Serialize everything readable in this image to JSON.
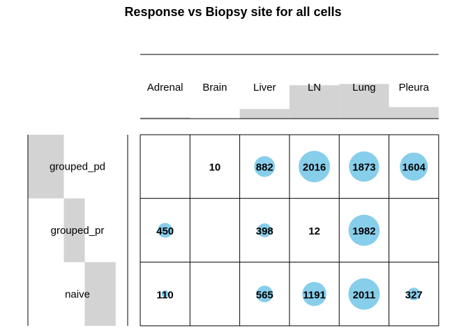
{
  "chart_data": {
    "type": "table",
    "title": "Response vs Biopsy site for all cells",
    "columns": [
      "Adrenal",
      "Brain",
      "Liver",
      "LN",
      "Lung",
      "Pleura"
    ],
    "rows": [
      "grouped_pd",
      "grouped_pr",
      "naive"
    ],
    "values": [
      [
        null,
        10,
        882,
        2016,
        1873,
        1604
      ],
      [
        450,
        null,
        398,
        12,
        1982,
        null
      ],
      [
        110,
        null,
        565,
        1191,
        2011,
        327
      ]
    ],
    "column_marginal_fractions": [
      0.02,
      0.0,
      0.15,
      0.52,
      0.54,
      0.18
    ],
    "row_marginal_fractions": [
      0.36,
      0.21,
      0.31
    ],
    "colors": {
      "bubble": "#87ceeb",
      "bar": "#d3d3d3",
      "grid": "#000000"
    }
  }
}
